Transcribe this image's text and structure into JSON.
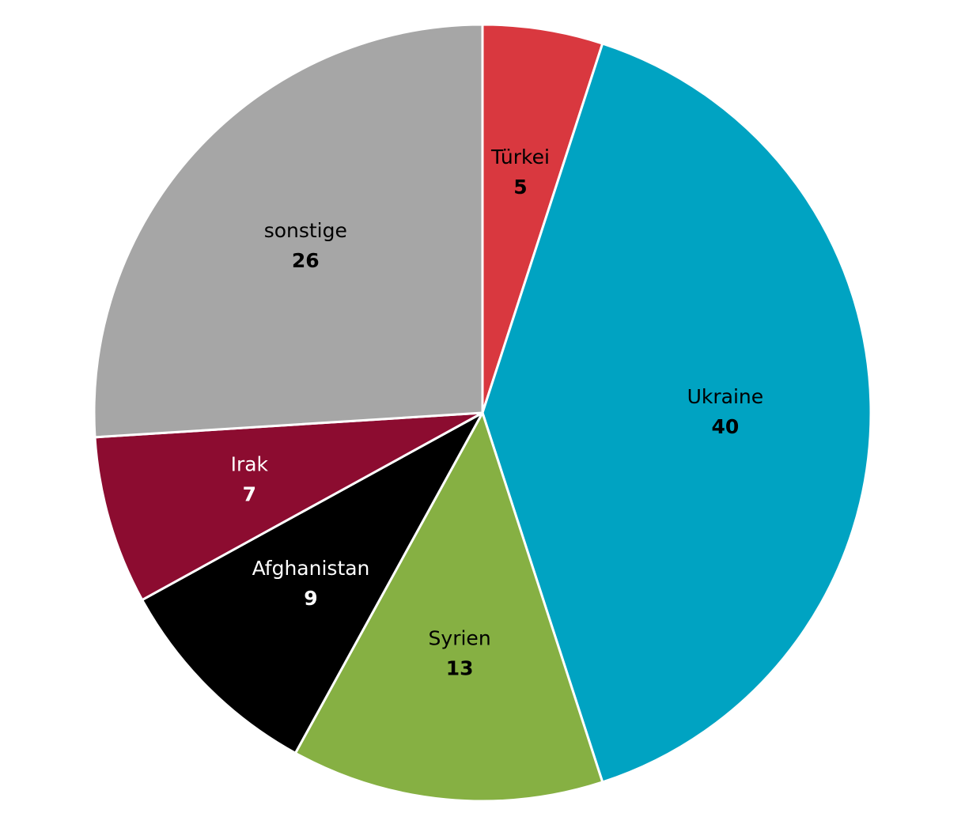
{
  "chart_data": {
    "type": "pie",
    "categories": [
      "Türkei",
      "Ukraine",
      "Syrien",
      "Afghanistan",
      "Irak",
      "sonstige"
    ],
    "values": [
      5,
      40,
      13,
      9,
      7,
      26
    ],
    "colors": [
      "#d9383f",
      "#00a3c2",
      "#86b043",
      "#000000",
      "#8c0c30",
      "#a6a6a6"
    ]
  }
}
